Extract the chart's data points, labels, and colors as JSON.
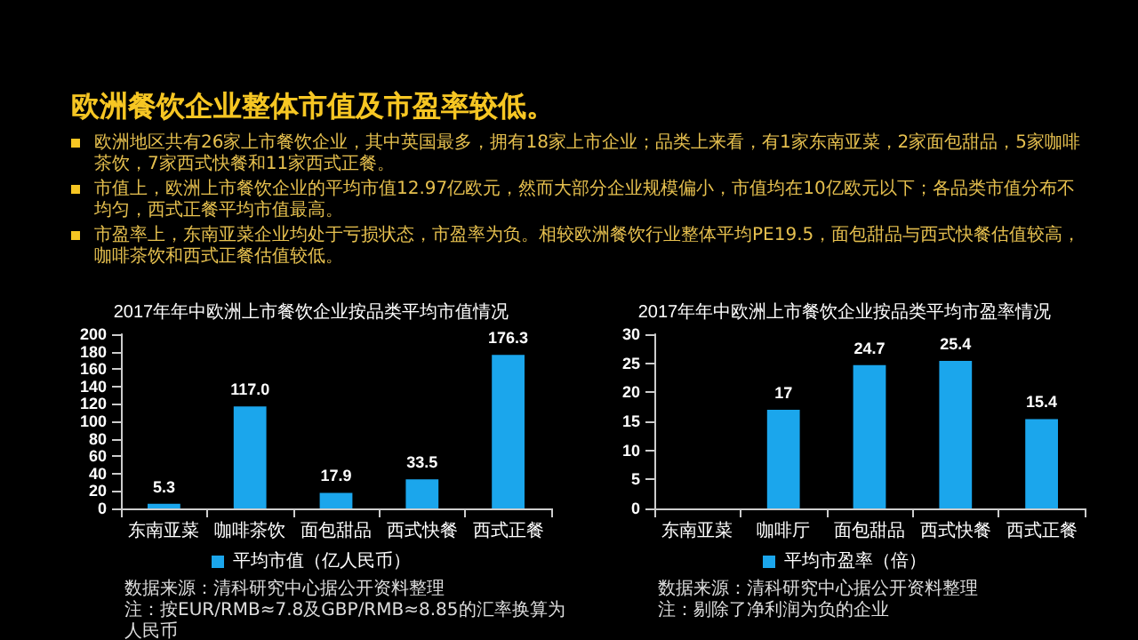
{
  "chart_data": [
    {
      "type": "other",
      "title": "欧洲餐饮企业整体市值及市盈率较低。",
      "annotations": [
        "欧洲地区共有26家上市餐饮企业，其中英国最多，拥有18家上市企业；品类上来看，有1家东南亚菜，2家面包甜品，5家咖啡茶饮，7家西式快餐和11家西式正餐。",
        "市值上，欧洲上市餐饮企业的平均市值12.97亿欧元，然而大部分企业规模偏小，市值均在10亿欧元以下；各品类市值分布不均匀，西式正餐平均市值最高。",
        "市盈率上，东南亚菜企业均处于亏损状态，市盈率为负。相较欧洲餐饮行业整体平均PE19.5，面包甜品与西式快餐估值较高，咖啡茶饮和西式正餐估值较低。"
      ]
    },
    {
      "type": "bar",
      "title": "2017年年中欧洲上市餐饮企业按品类平均市值情况",
      "categories": [
        "东南亚菜",
        "咖啡茶饮",
        "面包甜品",
        "西式快餐",
        "西式正餐"
      ],
      "series": [
        {
          "name": "平均市值（亿人民币）",
          "color": "#1ba6ec",
          "values": [
            5.3,
            117.0,
            17.9,
            33.5,
            176.3
          ],
          "value_labels": [
            "5.3",
            "117.0",
            "17.9",
            "33.5",
            "176.3"
          ]
        }
      ],
      "ylim": [
        0,
        200
      ],
      "yticks": [
        0,
        20,
        40,
        60,
        80,
        100,
        120,
        140,
        160,
        180,
        200
      ],
      "grid": false,
      "legend": "bottom",
      "annotations": [
        "数据来源：清科研究中心据公开资料整理",
        "注：按EUR/RMB≈7.8及GBP/RMB≈8.85的汇率换算为人民币"
      ]
    },
    {
      "type": "bar",
      "title": "2017年年中欧洲上市餐饮企业按品类平均市盈率情况",
      "categories": [
        "东南亚菜",
        "咖啡厅",
        "面包甜品",
        "西式快餐",
        "西式正餐"
      ],
      "series": [
        {
          "name": "平均市盈率（倍）",
          "color": "#1ba6ec",
          "values": [
            null,
            17,
            24.7,
            25.4,
            15.4
          ],
          "value_labels": [
            null,
            "17",
            "24.7",
            "25.4",
            "15.4"
          ]
        }
      ],
      "ylim": [
        0,
        30
      ],
      "yticks": [
        0,
        5,
        10,
        15,
        20,
        25,
        30
      ],
      "grid": false,
      "legend": "bottom",
      "annotations": [
        "数据来源：清科研究中心据公开资料整理",
        "注：剔除了净利润为负的企业"
      ]
    }
  ]
}
